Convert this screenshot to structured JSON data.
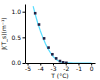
{
  "chart_data": {
    "type": "line",
    "xlabel": "T (°C)",
    "ylabel": "J(T_s)(m⁻¹)",
    "xlim": [
      -5.2,
      0.3
    ],
    "ylim": [
      0,
      1.15
    ],
    "xticks": [
      -5,
      -4,
      -3,
      -2,
      -1,
      0
    ],
    "yticks": [
      {
        "value": 0,
        "label": "0.0"
      },
      {
        "value": 0.5,
        "label": "0.5"
      },
      {
        "value": 1,
        "label": "1.0"
      }
    ],
    "series": [
      {
        "type": "line",
        "color": "#55ddff",
        "x": [
          -4.55,
          -4.4,
          -4.2,
          -4.0,
          -3.8,
          -3.6,
          -3.4,
          -3.2,
          -3.0,
          -2.8,
          -2.6,
          -2.4,
          -2.2,
          -2.0,
          -1.8,
          -1.6,
          -1.4,
          -1.2,
          -1.0,
          -0.8,
          -0.5,
          -0.2,
          0.0
        ],
        "values": [
          1.1,
          0.95,
          0.78,
          0.63,
          0.5,
          0.38,
          0.28,
          0.2,
          0.13,
          0.08,
          0.045,
          0.022,
          0.01,
          0.004,
          0.0015,
          0.0005,
          0.0002,
          0.0001,
          5e-05,
          2e-05,
          5e-06,
          1e-06,
          5e-07
        ]
      },
      {
        "type": "scatter",
        "color": "#222244",
        "marker": "square",
        "x": [
          -4.4,
          -4.1,
          -3.7,
          -3.35,
          -3.05,
          -2.75,
          -2.45,
          -2.2,
          -1.95
        ],
        "values": [
          0.97,
          0.75,
          0.48,
          0.3,
          0.17,
          0.09,
          0.038,
          0.013,
          0.004
        ]
      }
    ]
  }
}
